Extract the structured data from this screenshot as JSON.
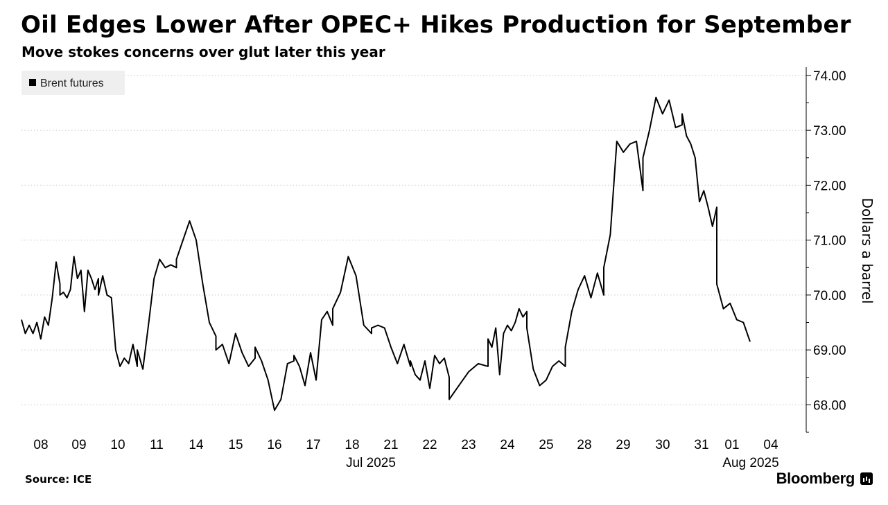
{
  "header": {
    "title": "Oil Edges Lower After OPEC+ Hikes Production for September",
    "subtitle": "Move stokes concerns over glut later this year"
  },
  "footer": {
    "source": "Source: ICE",
    "brand": "Bloomberg"
  },
  "colors": {
    "series": "#000000",
    "grid": "#c8c8c8",
    "legend_bg": "#efefef"
  },
  "chart_data": {
    "type": "line",
    "ylabel": "Dollars a barrel",
    "ylim": [
      67.5,
      74.15
    ],
    "y_ticks": [
      "68.00",
      "69.00",
      "70.00",
      "71.00",
      "72.00",
      "73.00",
      "74.00"
    ],
    "y_tick_values": [
      68,
      69,
      70,
      71,
      72,
      73,
      74
    ],
    "x_tick_labels": [
      "08",
      "09",
      "10",
      "11",
      "14",
      "15",
      "16",
      "17",
      "18",
      "21",
      "22",
      "23",
      "24",
      "25",
      "28",
      "29",
      "30",
      "31",
      "01",
      "04"
    ],
    "x_group_labels": [
      {
        "label": "Jul 2025",
        "at": "18"
      },
      {
        "label": "Aug 2025",
        "at": "01"
      }
    ],
    "legend_position": "top-left",
    "grid": true,
    "series": [
      {
        "name": "Brent futures",
        "points": [
          [
            "08",
            69.55
          ],
          [
            "08",
            69.3
          ],
          [
            "08",
            69.45
          ],
          [
            "08",
            69.3
          ],
          [
            "08",
            69.5
          ],
          [
            "08",
            69.2
          ],
          [
            "08",
            69.6
          ],
          [
            "08",
            69.45
          ],
          [
            "08",
            69.95
          ],
          [
            "08",
            70.6
          ],
          [
            "08",
            70.2
          ],
          [
            "09",
            70.0
          ],
          [
            "09",
            70.05
          ],
          [
            "09",
            69.95
          ],
          [
            "09",
            70.1
          ],
          [
            "09",
            70.7
          ],
          [
            "09",
            70.3
          ],
          [
            "09",
            70.45
          ],
          [
            "09",
            69.7
          ],
          [
            "09",
            70.45
          ],
          [
            "09",
            70.3
          ],
          [
            "09",
            70.1
          ],
          [
            "09",
            70.3
          ],
          [
            "10",
            70.0
          ],
          [
            "10",
            70.35
          ],
          [
            "10",
            70.0
          ],
          [
            "10",
            69.95
          ],
          [
            "10",
            69.0
          ],
          [
            "10",
            68.7
          ],
          [
            "10",
            68.85
          ],
          [
            "10",
            68.75
          ],
          [
            "10",
            69.1
          ],
          [
            "10",
            68.7
          ],
          [
            "11",
            69.0
          ],
          [
            "11",
            68.65
          ],
          [
            "11",
            69.45
          ],
          [
            "11",
            70.3
          ],
          [
            "11",
            70.65
          ],
          [
            "11",
            70.5
          ],
          [
            "11",
            70.55
          ],
          [
            "11",
            70.5
          ],
          [
            "14",
            70.65
          ],
          [
            "14",
            71.0
          ],
          [
            "14",
            71.35
          ],
          [
            "14",
            71.0
          ],
          [
            "14",
            70.2
          ],
          [
            "14",
            69.5
          ],
          [
            "14",
            69.25
          ],
          [
            "15",
            69.0
          ],
          [
            "15",
            69.1
          ],
          [
            "15",
            68.75
          ],
          [
            "15",
            69.3
          ],
          [
            "15",
            68.95
          ],
          [
            "15",
            68.7
          ],
          [
            "15",
            68.85
          ],
          [
            "16",
            69.05
          ],
          [
            "16",
            68.8
          ],
          [
            "16",
            68.45
          ],
          [
            "16",
            67.9
          ],
          [
            "16",
            68.1
          ],
          [
            "16",
            68.75
          ],
          [
            "16",
            68.8
          ],
          [
            "17",
            68.9
          ],
          [
            "17",
            68.7
          ],
          [
            "17",
            68.35
          ],
          [
            "17",
            68.95
          ],
          [
            "17",
            68.45
          ],
          [
            "17",
            69.55
          ],
          [
            "17",
            69.7
          ],
          [
            "17",
            69.45
          ],
          [
            "18",
            69.75
          ],
          [
            "18",
            70.05
          ],
          [
            "18",
            70.7
          ],
          [
            "18",
            70.35
          ],
          [
            "18",
            69.45
          ],
          [
            "18",
            69.3
          ],
          [
            "21",
            69.4
          ],
          [
            "21",
            69.45
          ],
          [
            "21",
            69.4
          ],
          [
            "21",
            69.05
          ],
          [
            "21",
            68.75
          ],
          [
            "21",
            69.1
          ],
          [
            "21",
            68.7
          ],
          [
            "22",
            68.8
          ],
          [
            "22",
            68.55
          ],
          [
            "22",
            68.45
          ],
          [
            "22",
            68.8
          ],
          [
            "22",
            68.3
          ],
          [
            "22",
            68.9
          ],
          [
            "22",
            68.75
          ],
          [
            "22",
            68.85
          ],
          [
            "22",
            68.5
          ],
          [
            "23",
            68.1
          ],
          [
            "23",
            68.35
          ],
          [
            "23",
            68.6
          ],
          [
            "23",
            68.75
          ],
          [
            "23",
            68.7
          ],
          [
            "24",
            69.2
          ],
          [
            "24",
            69.05
          ],
          [
            "24",
            69.4
          ],
          [
            "24",
            68.55
          ],
          [
            "24",
            69.3
          ],
          [
            "24",
            69.45
          ],
          [
            "24",
            69.35
          ],
          [
            "24",
            69.5
          ],
          [
            "24",
            69.75
          ],
          [
            "24",
            69.6
          ],
          [
            "24",
            69.7
          ],
          [
            "25",
            69.4
          ],
          [
            "25",
            68.65
          ],
          [
            "25",
            68.35
          ],
          [
            "25",
            68.45
          ],
          [
            "25",
            68.7
          ],
          [
            "25",
            68.8
          ],
          [
            "25",
            68.7
          ],
          [
            "28",
            69.05
          ],
          [
            "28",
            69.7
          ],
          [
            "28",
            70.1
          ],
          [
            "28",
            70.35
          ],
          [
            "28",
            69.95
          ],
          [
            "28",
            70.4
          ],
          [
            "28",
            70.0
          ],
          [
            "29",
            70.5
          ],
          [
            "29",
            71.1
          ],
          [
            "29",
            72.8
          ],
          [
            "29",
            72.6
          ],
          [
            "29",
            72.75
          ],
          [
            "29",
            72.8
          ],
          [
            "29",
            71.9
          ],
          [
            "30",
            72.5
          ],
          [
            "30",
            73.0
          ],
          [
            "30",
            73.6
          ],
          [
            "30",
            73.3
          ],
          [
            "30",
            73.55
          ],
          [
            "30",
            73.05
          ],
          [
            "30",
            73.1
          ],
          [
            "31",
            73.3
          ],
          [
            "31",
            72.9
          ],
          [
            "31",
            72.75
          ],
          [
            "31",
            72.5
          ],
          [
            "31",
            71.7
          ],
          [
            "31",
            71.9
          ],
          [
            "31",
            71.6
          ],
          [
            "31",
            71.25
          ],
          [
            "31",
            71.6
          ],
          [
            "01",
            70.2
          ],
          [
            "01",
            69.75
          ],
          [
            "01",
            69.85
          ],
          [
            "01",
            69.55
          ],
          [
            "01",
            69.5
          ],
          [
            "01",
            69.15
          ]
        ]
      }
    ]
  }
}
